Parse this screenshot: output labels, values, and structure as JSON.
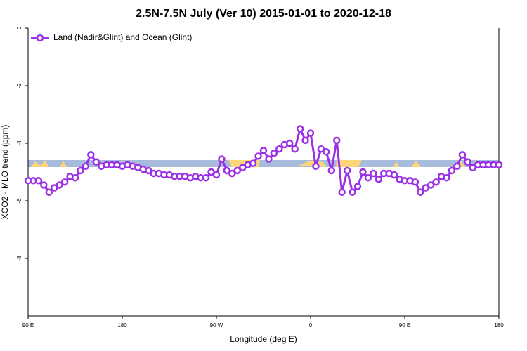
{
  "chart_data": {
    "type": "line",
    "title": "2.5N-7.5N July (Ver 10)   2015-01-01 to 2020-12-18",
    "x_label": "Longitude (deg E)",
    "y_label": "XCO2 - MLO trend (ppm)",
    "xlim": [
      90,
      540
    ],
    "ylim": [
      -10,
      0
    ],
    "xticks": [
      {
        "value": 90,
        "label": "90 E"
      },
      {
        "value": 180,
        "label": "180"
      },
      {
        "value": 270,
        "label": "90 W"
      },
      {
        "value": 360,
        "label": "0"
      },
      {
        "value": 450,
        "label": "90 E"
      },
      {
        "value": 540,
        "label": "180"
      }
    ],
    "yticks": [
      0,
      -2,
      -4,
      -6,
      -8
    ],
    "legend": "top-left",
    "x": [
      90,
      95,
      100,
      105,
      110,
      115,
      120,
      125,
      130,
      135,
      140,
      145,
      150,
      155,
      160,
      165,
      170,
      175,
      180,
      185,
      190,
      195,
      200,
      205,
      210,
      215,
      220,
      225,
      230,
      235,
      240,
      245,
      250,
      255,
      260,
      265,
      270,
      275,
      280,
      285,
      290,
      295,
      300,
      305,
      310,
      315,
      320,
      325,
      330,
      335,
      340,
      345,
      350,
      355,
      360,
      365,
      370,
      375,
      380,
      385,
      390,
      395,
      400,
      405,
      410,
      415,
      420,
      425,
      430,
      435,
      440,
      445,
      450,
      455,
      460,
      465,
      470,
      475,
      480,
      485,
      490,
      495,
      500,
      505,
      510,
      515,
      520,
      525,
      530,
      535,
      540
    ],
    "series": [
      {
        "name": "Land (Nadir&Glint) and Ocean (Glint)",
        "color": "#9b30e6",
        "values": [
          -5.3,
          -5.3,
          -5.3,
          -5.45,
          -5.7,
          -5.55,
          -5.45,
          -5.35,
          -5.15,
          -5.2,
          -4.95,
          -4.8,
          -4.4,
          -4.65,
          -4.8,
          -4.75,
          -4.75,
          -4.75,
          -4.8,
          -4.75,
          -4.8,
          -4.85,
          -4.9,
          -4.95,
          -5.05,
          -5.05,
          -5.1,
          -5.1,
          -5.15,
          -5.15,
          -5.15,
          -5.2,
          -5.15,
          -5.2,
          -5.2,
          -5.0,
          -5.1,
          -4.55,
          -4.95,
          -5.05,
          -4.95,
          -4.85,
          -4.75,
          -4.7,
          -4.45,
          -4.25,
          -4.55,
          -4.35,
          -4.2,
          -4.05,
          -4.0,
          -4.2,
          -3.5,
          -3.9,
          -3.65,
          -4.8,
          -4.2,
          -4.3,
          -4.95,
          -3.9,
          -5.7,
          -4.95,
          -5.7,
          -5.5,
          -5.0,
          -5.2,
          -5.05,
          -5.25,
          -5.05,
          -5.05,
          -5.1,
          -5.25,
          -5.3,
          -5.3,
          -5.35,
          -5.7,
          -5.55,
          -5.45,
          -5.35,
          -5.15,
          -5.2,
          -4.95,
          -4.8,
          -4.4,
          -4.65,
          -4.85,
          -4.75,
          -4.75,
          -4.75,
          -4.75,
          -4.75
        ]
      }
    ]
  }
}
